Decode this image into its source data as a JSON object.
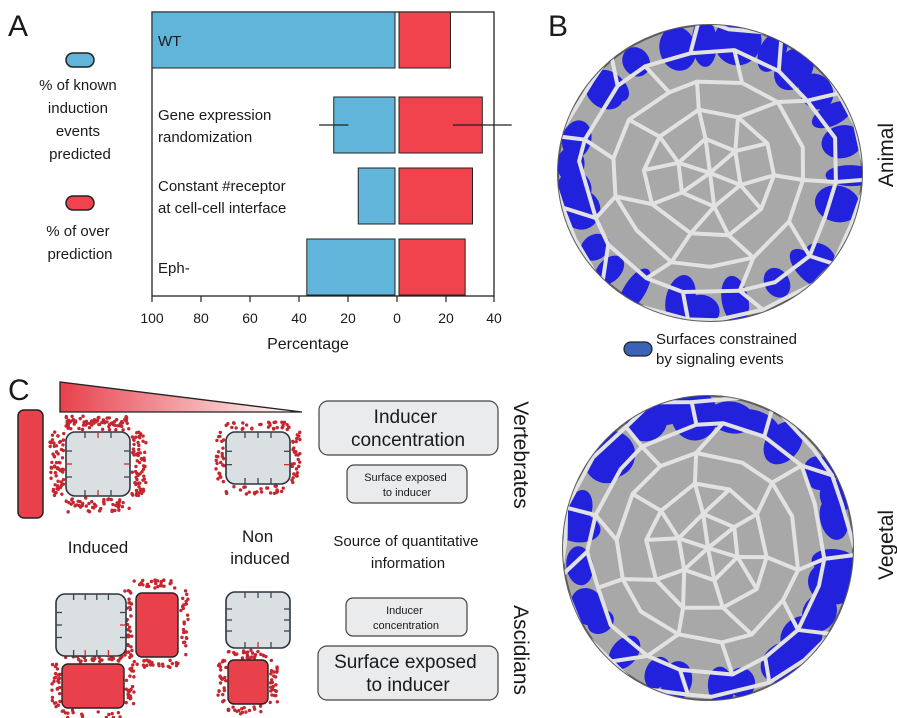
{
  "panels": {
    "a": "A",
    "b": "B",
    "c": "C"
  },
  "legend": {
    "known_label": [
      "% of known",
      "induction",
      "events",
      "predicted"
    ],
    "over_label": [
      "% of over",
      "prediction"
    ],
    "known_color": "#62b5da",
    "over_color": "#f0434e"
  },
  "chart_data": {
    "type": "bar",
    "orientation": "horizontal-diverging",
    "categories": [
      [
        "WT"
      ],
      [
        "Gene expression",
        "randomization"
      ],
      [
        "Constant #receptor",
        "at cell-cell interface"
      ],
      [
        "Eph-"
      ]
    ],
    "series": [
      {
        "key": "known",
        "color": "#62b5da",
        "direction": "left",
        "values": [
          100,
          25,
          15,
          36
        ],
        "errors": [
          0,
          2,
          0,
          0
        ]
      },
      {
        "key": "over",
        "color": "#f0434e",
        "direction": "right",
        "values": [
          21,
          34,
          30,
          27
        ],
        "errors": [
          0,
          4,
          0,
          0
        ]
      }
    ],
    "xticks": [
      "100",
      "80",
      "60",
      "40",
      "20",
      "0",
      "20",
      "40"
    ],
    "xlim": [
      -100,
      40
    ],
    "xlabel": "Percentage",
    "grid": false
  },
  "embryo": {
    "top_label": "Animal",
    "bottom_label": "Vegetal",
    "legend_text": [
      "Surfaces constrained",
      "by signaling events"
    ],
    "surface_color": "#2222dd",
    "legend_color": "#3a63b8",
    "cell_color": "#a8a8a8"
  },
  "schematic": {
    "induced_label": "Induced",
    "non_induced_label": [
      "Non",
      "induced"
    ],
    "source_label": [
      "Source of quantitative",
      "information"
    ],
    "vertebrates_label": "Vertebrates",
    "ascidians_label": "Ascidians",
    "vert_big_box": [
      "Inducer",
      "concentration"
    ],
    "vert_small_box": [
      "Surface exposed",
      "to inducer"
    ],
    "asc_small_box": [
      "Inducer",
      "concentration"
    ],
    "asc_big_box": [
      "Surface exposed",
      "to inducer"
    ],
    "inducer_color": "#e8414c",
    "cell_color": "#dadfe2"
  }
}
